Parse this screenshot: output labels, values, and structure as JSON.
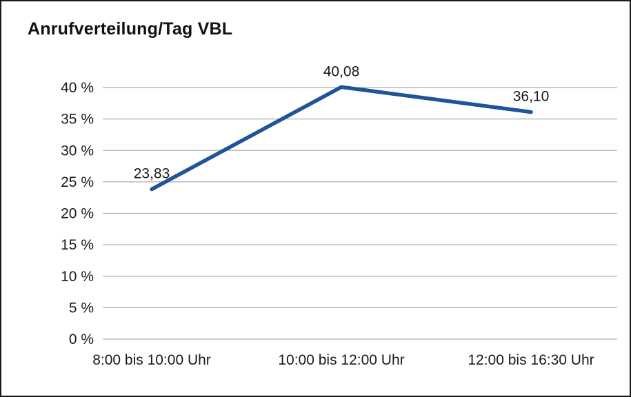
{
  "title": "Anrufverteilung/Tag VBL",
  "chart_data": {
    "type": "line",
    "title": "Anrufverteilung/Tag VBL",
    "categories": [
      "8:00 bis 10:00 Uhr",
      "10:00 bis 12:00 Uhr",
      "12:00 bis 16:30 Uhr"
    ],
    "values": [
      23.83,
      40.08,
      36.1
    ],
    "value_labels": [
      "23,83",
      "40,08",
      "36,10"
    ],
    "ylim": [
      0,
      40
    ],
    "ytick_step": 5,
    "ytick_labels": [
      "0 %",
      "5 %",
      "10 %",
      "15 %",
      "20 %",
      "25 %",
      "30 %",
      "35 %",
      "40 %"
    ],
    "grid": true,
    "legend": "none",
    "line_color": "#1F5496",
    "grid_color": "#ADADAD",
    "text_color": "#1A1A1A"
  }
}
